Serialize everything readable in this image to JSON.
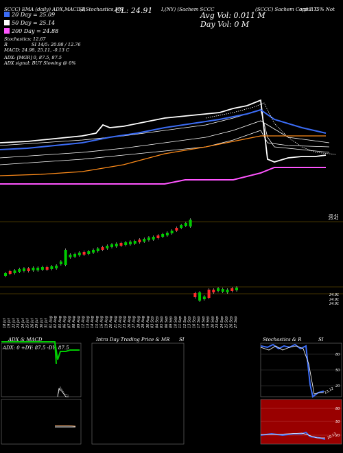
{
  "header": {
    "symbol_line": "(SCCC) Sachem Capital C",
    "symbol_line_cont": "orp 7.75% Not",
    "ema_line": "SCCC) EMA (daily) ADX,MACD,B",
    "stoch_line": "SI,Stochastics,MR",
    "exch_line": "I,(NY) (Sachem SCCC",
    "close": "CL: 24.91",
    "avg_vol": "Avg Vol: 0.011 M",
    "day_vol": "Day Vol: 0   M",
    "stochastics": "Stochastics: 12.67",
    "rsi": "SI 14/5: 20.98 / 12.76",
    "macd": "MACD: 24.98, 25.11, -0.13 C",
    "adx": "ADX:                        [MGR] 0, 87.5,  87.5",
    "adx_signal": "ADX  signal:                              BUY Slowing @ 0%",
    "r_label": "R"
  },
  "legend": [
    {
      "label": "20  Day = 25.09",
      "color": "#3b6cf5"
    },
    {
      "label": "50  Day = 25.14",
      "color": "#ffffff"
    },
    {
      "label": "200  Day = 24.88",
      "color": "#ff55ff"
    }
  ],
  "right_label_top": "25.41",
  "right_label_top2": "25.41",
  "right_labels_bottom": [
    "24.91",
    "24.91",
    "24.91"
  ],
  "x_dates": [
    "18 Jul",
    "19 Jul",
    "22 Jul",
    "23 Jul",
    "24 Jul",
    "25 Jul",
    "26 Jul",
    "29 Jul",
    "30 Jul",
    "31 Jul",
    "01 Aug",
    "02 Aug",
    "05 Aug",
    "06 Aug",
    "07 Aug",
    "08 Aug",
    "09 Aug",
    "12 Aug",
    "13 Aug",
    "14 Aug",
    "15 Aug",
    "16 Aug",
    "19 Aug",
    "20 Aug",
    "21 Aug",
    "22 Aug",
    "23 Aug",
    "26 Aug",
    "27 Aug",
    "28 Aug",
    "29 Aug",
    "30 Aug",
    "03 Sep",
    "04 Sep",
    "05 Sep",
    "06 Sep",
    "09 Sep",
    "10 Sep",
    "11 Sep",
    "12 Sep",
    "13 Sep",
    "16 Sep",
    "17 Sep",
    "18 Sep",
    "19 Sep",
    "20 Sep",
    "23 Sep",
    "24 Sep",
    "25 Sep",
    "26 Sep",
    "27 Sep"
  ],
  "panels": {
    "adx_title": "ADX  & MACD",
    "adx_readout": "ADX: 0   +DY: 87.5 -DY: 87.5",
    "intra_title": "Intra  Day Trading Price  & MR",
    "intra_title2": "SI",
    "stoch_title": "Stochastics & R",
    "stoch_title2": "SI",
    "stoch_levels": [
      "80",
      "50",
      "20"
    ],
    "rsi_levels": [
      "80",
      "50",
      "20"
    ],
    "stoch_tag": "13,12",
    "rsi_tag": "20,13"
  },
  "colors": {
    "ema20": "#3b6cf5",
    "ema50": "#ffffff",
    "ema200": "#ff55ff",
    "orange": "#ff8c1a",
    "up": "#00cc00",
    "down": "#ff2a2a",
    "rsi_bg": "#990000",
    "stoch_bg": "#ffffff"
  }
}
